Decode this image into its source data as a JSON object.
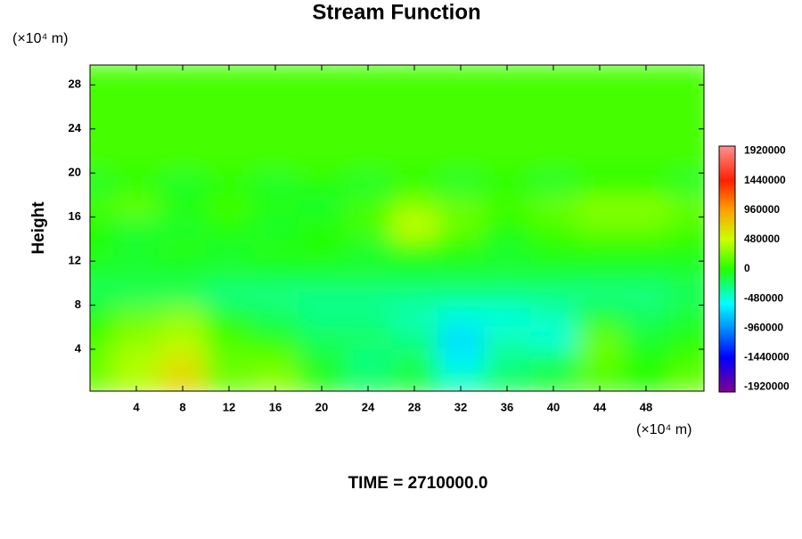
{
  "chart_data": {
    "type": "contourf",
    "title": "Stream Function",
    "x_unit": "(×10⁴ m)",
    "y_unit": "(×10⁴ m)",
    "y_label": "Height",
    "footer": "TIME = 2710000.0",
    "xlim": [
      0,
      53
    ],
    "ylim": [
      0.2,
      29.8
    ],
    "xticks": [
      4,
      8,
      12,
      16,
      20,
      24,
      28,
      32,
      36,
      40,
      44,
      48
    ],
    "yticks": [
      4,
      8,
      12,
      16,
      20,
      24,
      28
    ],
    "x": [
      0,
      4,
      8,
      12,
      16,
      20,
      24,
      28,
      32,
      36,
      40,
      44,
      48,
      52
    ],
    "y": [
      1,
      3,
      5,
      7,
      9,
      11,
      13,
      15,
      17,
      19,
      21,
      23,
      25,
      27,
      29
    ],
    "z": [
      [
        200000,
        400000,
        700000,
        200000,
        300000,
        0,
        -200000,
        -100000,
        -400000,
        -200000,
        -100000,
        100000,
        0,
        200000
      ],
      [
        200000,
        400000,
        600000,
        200000,
        200000,
        -100000,
        -300000,
        -200000,
        -600000,
        -300000,
        -200000,
        200000,
        0,
        100000
      ],
      [
        100000,
        300000,
        400000,
        100000,
        0,
        -200000,
        -200000,
        -300000,
        -700000,
        -400000,
        -500000,
        200000,
        -100000,
        0
      ],
      [
        0,
        200000,
        300000,
        0,
        -200000,
        -300000,
        -300000,
        -400000,
        -500000,
        -500000,
        -400000,
        -100000,
        -200000,
        -100000
      ],
      [
        -200000,
        -200000,
        -200000,
        -300000,
        -300000,
        -300000,
        -300000,
        -300000,
        -300000,
        -300000,
        -300000,
        -300000,
        -300000,
        -200000
      ],
      [
        -100000,
        -100000,
        -100000,
        -100000,
        -100000,
        -100000,
        -100000,
        -100000,
        -100000,
        -100000,
        -100000,
        -100000,
        -100000,
        -100000
      ],
      [
        0,
        -100000,
        0,
        -100000,
        0,
        0,
        -100000,
        0,
        0,
        -100000,
        0,
        0,
        0,
        0
      ],
      [
        0,
        -100000,
        -100000,
        0,
        -100000,
        0,
        100000,
        500000,
        200000,
        0,
        100000,
        200000,
        200000,
        100000
      ],
      [
        100000,
        200000,
        0,
        100000,
        0,
        -100000,
        100000,
        300000,
        200000,
        100000,
        200000,
        300000,
        300000,
        200000
      ],
      [
        -100000,
        0,
        -100000,
        0,
        -100000,
        0,
        -100000,
        0,
        -100000,
        0,
        -100000,
        0,
        0,
        -100000
      ],
      [
        100000,
        100000,
        100000,
        100000,
        100000,
        100000,
        100000,
        100000,
        100000,
        100000,
        100000,
        100000,
        100000,
        100000
      ],
      [
        100000,
        100000,
        100000,
        100000,
        100000,
        100000,
        100000,
        100000,
        100000,
        100000,
        100000,
        100000,
        100000,
        100000
      ],
      [
        100000,
        100000,
        100000,
        100000,
        100000,
        100000,
        100000,
        100000,
        100000,
        100000,
        100000,
        100000,
        100000,
        100000
      ],
      [
        100000,
        100000,
        100000,
        100000,
        100000,
        100000,
        100000,
        100000,
        100000,
        100000,
        100000,
        100000,
        100000,
        100000
      ],
      [
        100000,
        100000,
        100000,
        100000,
        100000,
        100000,
        100000,
        100000,
        100000,
        100000,
        100000,
        100000,
        100000,
        100000
      ]
    ],
    "colorbar_lim": [
      -2000000,
      2000000
    ],
    "colorbar_ticks": [
      1920000,
      1440000,
      960000,
      480000,
      0,
      -480000,
      -960000,
      -1440000,
      -1920000
    ],
    "colorscale": [
      [
        -2000000,
        "#800090"
      ],
      [
        -1440000,
        "#0000ff"
      ],
      [
        -960000,
        "#0090ff"
      ],
      [
        -560000,
        "#00ffff"
      ],
      [
        0,
        "#22ff00"
      ],
      [
        480000,
        "#ccff00"
      ],
      [
        960000,
        "#ffa000"
      ],
      [
        1440000,
        "#ff2000"
      ],
      [
        2000000,
        "#ff9090"
      ]
    ]
  }
}
